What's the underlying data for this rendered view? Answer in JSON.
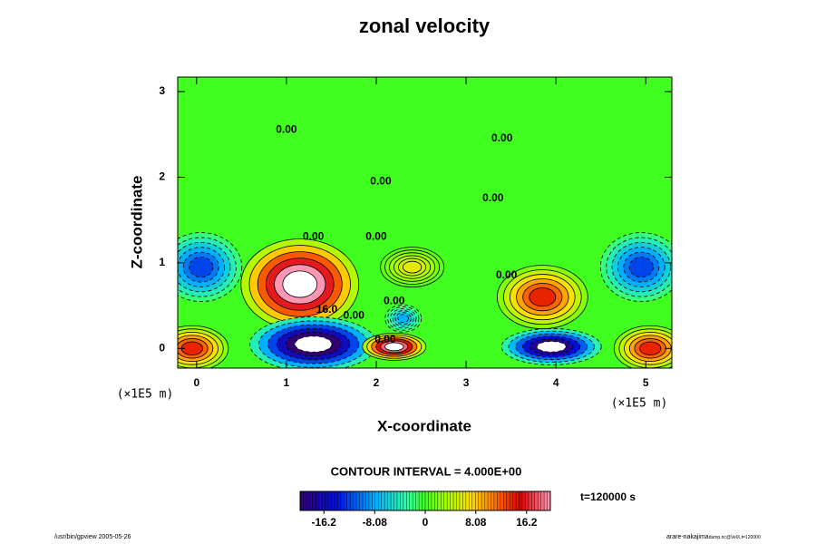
{
  "chart_data": {
    "type": "contour",
    "title": "zonal velocity",
    "x_label": "X-coordinate",
    "y_label": "Z-coordinate",
    "x_unit": "(×1E5 m)",
    "y_unit": "(×1E5 m)",
    "xlim": [
      -0.21,
      5.29
    ],
    "ylim": [
      -0.23,
      3.17
    ],
    "xticks": [
      0,
      1,
      2,
      3,
      4,
      5
    ],
    "yticks": [
      0,
      1,
      2,
      3
    ],
    "features": [
      {
        "x": 1.15,
        "y": 0.75,
        "value": 24
      },
      {
        "x": 1.3,
        "y": 0.05,
        "value": -24
      },
      {
        "x": 2.2,
        "y": 0.02,
        "value": 22
      },
      {
        "x": 3.95,
        "y": 0.02,
        "value": -22
      },
      {
        "x": 3.85,
        "y": 0.6,
        "value": 14
      },
      {
        "x": 0.05,
        "y": 0.95,
        "value": -12
      },
      {
        "x": 4.95,
        "y": 0.95,
        "value": -12
      },
      {
        "x": -0.05,
        "y": 0.0,
        "value": 14
      },
      {
        "x": 5.05,
        "y": 0.0,
        "value": 14
      },
      {
        "x": 2.4,
        "y": 0.95,
        "value": 6
      },
      {
        "x": 2.3,
        "y": 0.35,
        "value": -8
      }
    ],
    "contour_labels": [
      "0.00",
      "0.00",
      "0.00",
      "0.00",
      "0.00",
      "0.00",
      "0.00",
      "0.00",
      "0.00",
      "0.00",
      "16.0"
    ],
    "contour_interval": "CONTOUR INTERVAL = 4.000E+00",
    "colorbar": {
      "clim": [
        -20,
        20
      ],
      "ticks": [
        -16.2,
        -8.08,
        0,
        8.08,
        16.2
      ]
    },
    "time_label": "t=120000 s",
    "footer_left": "/usr/bin/gpview 2005-05-26",
    "footer_right": "arare-nakajima",
    "footer_right_sub": "dump.nc@VelX,t=120000"
  }
}
